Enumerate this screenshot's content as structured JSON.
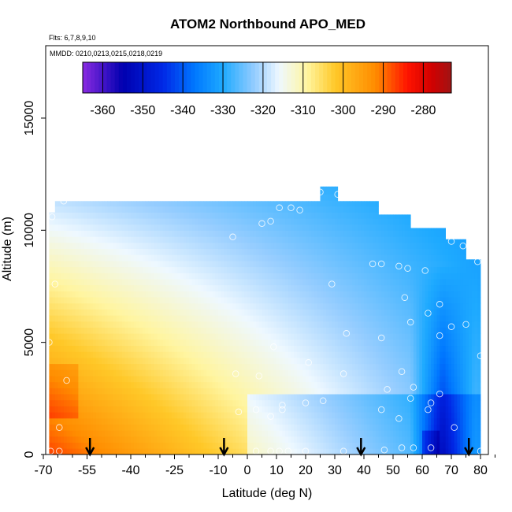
{
  "chart_data": {
    "type": "heatmap",
    "title": "ATOM2 Northbound APO_MED",
    "annotations": [
      "Flts: 6,7,8,9,10",
      "MMDD: 0210,0213,0215,0218,0219"
    ],
    "xlabel": "Latitude (deg N)",
    "ylabel": "Altitude (m)",
    "xlim": [
      -70,
      85
    ],
    "ylim": [
      0,
      17600
    ],
    "x_ticks": [
      -70,
      -55,
      -40,
      -25,
      -10,
      0,
      10,
      20,
      30,
      40,
      50,
      60,
      70,
      80
    ],
    "y_ticks": [
      0,
      5000,
      10000,
      15000
    ],
    "colorbar": {
      "ticks": [
        -360,
        -350,
        -340,
        -330,
        -320,
        -310,
        -300,
        -290,
        -280
      ],
      "range": [
        -365,
        -273
      ],
      "placement": "top inset"
    },
    "arrows_latitude": [
      -54,
      -8,
      39,
      76
    ],
    "data_region_latitude": [
      -68,
      80
    ],
    "grid": false,
    "observation_points": [
      {
        "x": -67.5,
        "y": 150
      },
      {
        "x": -64.5,
        "y": 150
      },
      {
        "x": -64.5,
        "y": 1200
      },
      {
        "x": -62,
        "y": 3300
      },
      {
        "x": -68,
        "y": 5000
      },
      {
        "x": -66,
        "y": 7600
      },
      {
        "x": -67,
        "y": 10600
      },
      {
        "x": -63,
        "y": 11300
      },
      {
        "x": -5,
        "y": 9700
      },
      {
        "x": -4,
        "y": 3600
      },
      {
        "x": -3,
        "y": 1900
      },
      {
        "x": 3,
        "y": 150
      },
      {
        "x": 3,
        "y": 2000
      },
      {
        "x": 4,
        "y": 3500
      },
      {
        "x": 5,
        "y": 10300
      },
      {
        "x": 8,
        "y": 10400
      },
      {
        "x": 8,
        "y": 150
      },
      {
        "x": 8,
        "y": 1700
      },
      {
        "x": 9,
        "y": 4800
      },
      {
        "x": 11,
        "y": 150
      },
      {
        "x": 11,
        "y": 11000
      },
      {
        "x": 12,
        "y": 2000
      },
      {
        "x": 12,
        "y": 2200
      },
      {
        "x": 14,
        "y": 150
      },
      {
        "x": 15,
        "y": 11000
      },
      {
        "x": 18,
        "y": 10900
      },
      {
        "x": 20,
        "y": 150
      },
      {
        "x": 20,
        "y": 2300
      },
      {
        "x": 21,
        "y": 4100
      },
      {
        "x": 25,
        "y": 11700
      },
      {
        "x": 26,
        "y": 2400
      },
      {
        "x": 29,
        "y": 7600
      },
      {
        "x": 31,
        "y": 11600
      },
      {
        "x": 33,
        "y": 3600
      },
      {
        "x": 33,
        "y": 150
      },
      {
        "x": 34,
        "y": 5400
      },
      {
        "x": 43,
        "y": 8500
      },
      {
        "x": 46,
        "y": 8500
      },
      {
        "x": 46,
        "y": 5200
      },
      {
        "x": 46,
        "y": 2000
      },
      {
        "x": 47,
        "y": 200
      },
      {
        "x": 48,
        "y": 2900
      },
      {
        "x": 52,
        "y": 8400
      },
      {
        "x": 52,
        "y": 1600
      },
      {
        "x": 53,
        "y": 3700
      },
      {
        "x": 53,
        "y": 300
      },
      {
        "x": 54,
        "y": 7000
      },
      {
        "x": 55,
        "y": 8300
      },
      {
        "x": 56,
        "y": 5900
      },
      {
        "x": 56,
        "y": 2500
      },
      {
        "x": 57,
        "y": 300
      },
      {
        "x": 57,
        "y": 3000
      },
      {
        "x": 61,
        "y": 8200
      },
      {
        "x": 62,
        "y": 6300
      },
      {
        "x": 62,
        "y": 2000
      },
      {
        "x": 63,
        "y": 2300
      },
      {
        "x": 63,
        "y": 300
      },
      {
        "x": 66,
        "y": 6700
      },
      {
        "x": 66,
        "y": 5300
      },
      {
        "x": 66,
        "y": 2700
      },
      {
        "x": 70,
        "y": 9500
      },
      {
        "x": 70,
        "y": 5700
      },
      {
        "x": 71,
        "y": 1200
      },
      {
        "x": 74,
        "y": 9300
      },
      {
        "x": 75,
        "y": 5800
      },
      {
        "x": 79,
        "y": 8600
      },
      {
        "x": 80,
        "y": 4400
      },
      {
        "x": 80,
        "y": 150
      }
    ]
  }
}
